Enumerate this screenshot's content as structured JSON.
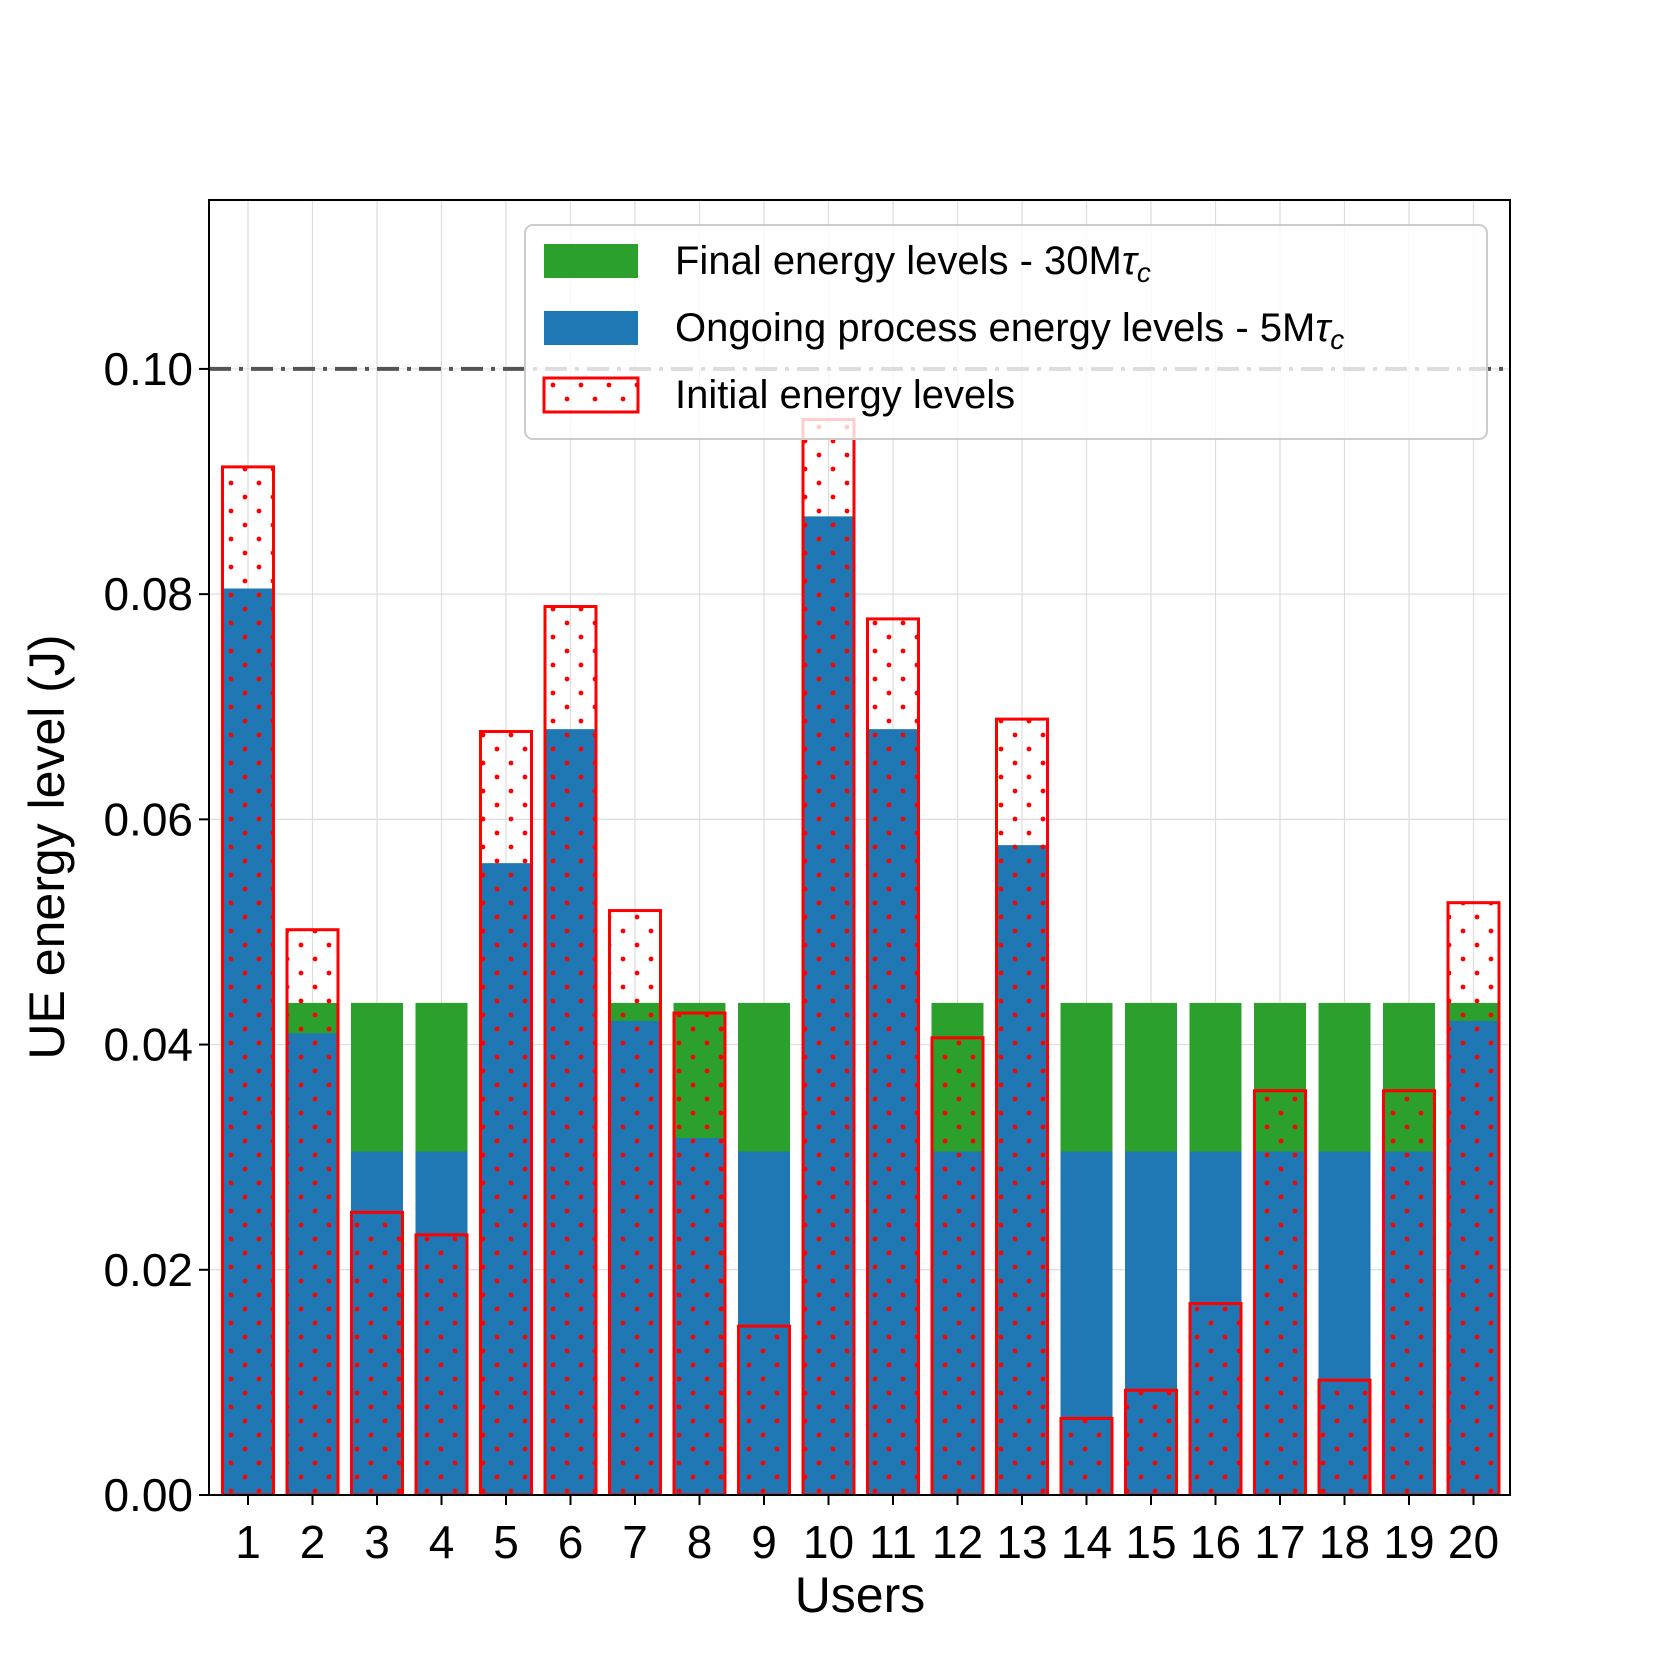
{
  "chart_data": {
    "type": "bar",
    "xlabel": "Users",
    "ylabel": "UE energy level (J)",
    "ylim": [
      0,
      0.115
    ],
    "yticks": [
      "0.00",
      "0.02",
      "0.04",
      "0.06",
      "0.08",
      "0.10"
    ],
    "ytick_values": [
      0,
      0.02,
      0.04,
      0.06,
      0.08,
      0.1
    ],
    "grid": true,
    "reference_line": {
      "value": 0.1,
      "style": "dash-dot"
    },
    "categories": [
      "1",
      "2",
      "3",
      "4",
      "5",
      "6",
      "7",
      "8",
      "9",
      "10",
      "11",
      "12",
      "13",
      "14",
      "15",
      "16",
      "17",
      "18",
      "19",
      "20"
    ],
    "series": [
      {
        "name": "Final energy levels - 30Mτc",
        "legend_main": "Final energy levels - 30M",
        "legend_sym": "τ",
        "legend_sub": "c",
        "style": "filled",
        "values": [
          0.0805,
          0.0437,
          0.0437,
          0.0437,
          0.0561,
          0.068,
          0.0437,
          0.0437,
          0.0437,
          0.0869,
          0.068,
          0.0437,
          0.0577,
          0.0437,
          0.0437,
          0.0437,
          0.0437,
          0.0437,
          0.0437,
          0.0437
        ]
      },
      {
        "name": "Ongoing process energy levels - 5Mτc",
        "legend_main": "Ongoing process energy levels - 5M",
        "legend_sym": "τ",
        "legend_sub": "c",
        "style": "filled",
        "values": [
          0.0805,
          0.041,
          0.0305,
          0.0305,
          0.0561,
          0.068,
          0.0421,
          0.0317,
          0.0305,
          0.0869,
          0.068,
          0.0305,
          0.0577,
          0.0305,
          0.0305,
          0.0305,
          0.0305,
          0.0305,
          0.0305,
          0.0421
        ]
      },
      {
        "name": "Initial energy levels",
        "legend_main": "Initial energy levels",
        "style": "outline-dotted",
        "values": [
          0.0913,
          0.0502,
          0.0251,
          0.0231,
          0.0678,
          0.0789,
          0.0519,
          0.0428,
          0.015,
          0.0955,
          0.0778,
          0.0406,
          0.0689,
          0.0068,
          0.0093,
          0.017,
          0.0359,
          0.0102,
          0.0359,
          0.0526
        ]
      }
    ]
  },
  "colors": {
    "final": "#2ca02c",
    "ongoing": "#1f77b4",
    "initial": "#ff0000",
    "reference_line": "#555555",
    "grid": "#dddddd"
  }
}
